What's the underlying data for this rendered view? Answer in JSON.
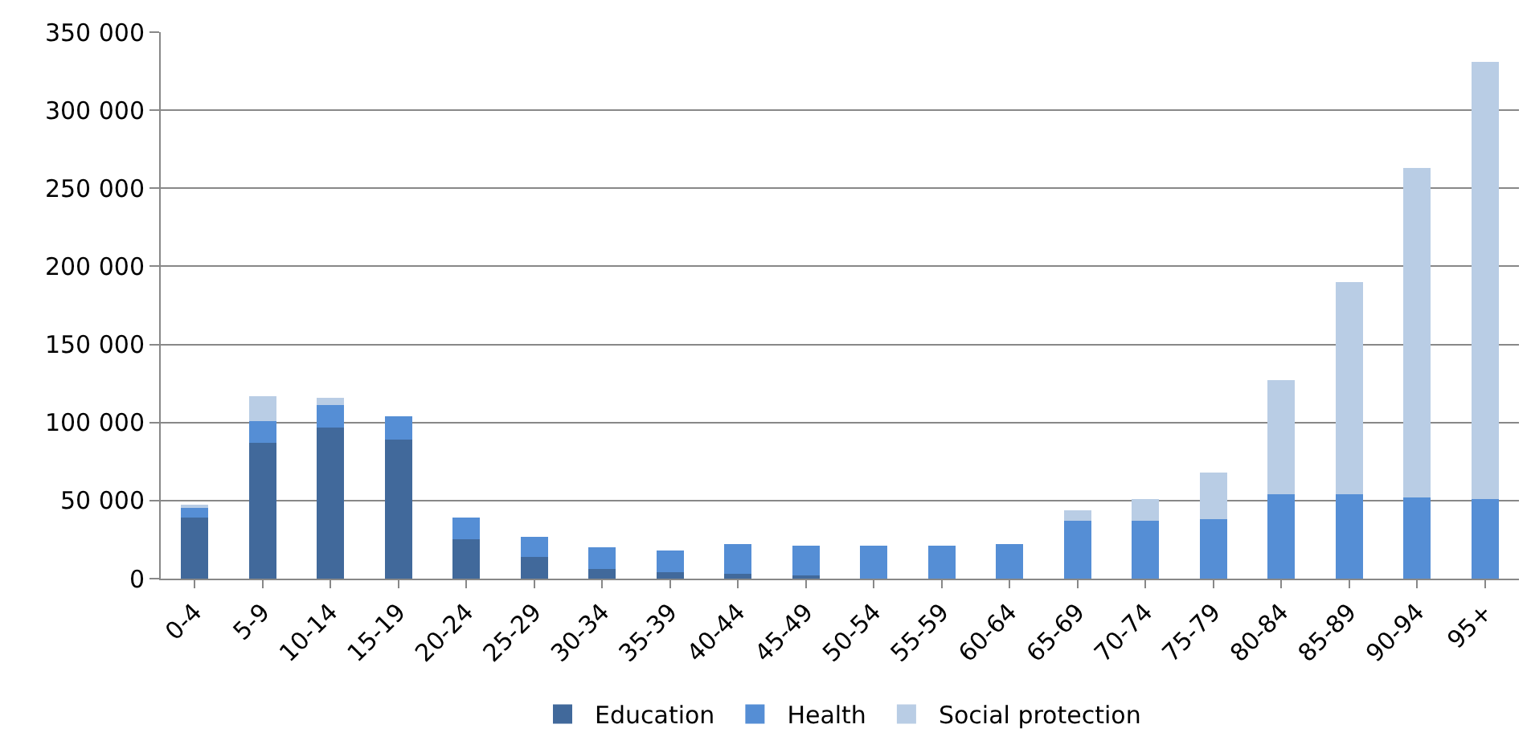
{
  "chart_data": {
    "type": "bar",
    "stacked": true,
    "categories": [
      "0-4",
      "5-9",
      "10-14",
      "15-19",
      "20-24",
      "25-29",
      "30-34",
      "35-39",
      "40-44",
      "45-49",
      "50-54",
      "55-59",
      "60-64",
      "65-69",
      "70-74",
      "75-79",
      "80-84",
      "85-89",
      "90-94",
      "95+"
    ],
    "series": [
      {
        "name": "Education",
        "color": "#41699b",
        "values": [
          39000,
          87000,
          97000,
          89000,
          25000,
          14000,
          6000,
          4000,
          3000,
          2000,
          0,
          0,
          0,
          0,
          0,
          0,
          0,
          0,
          0,
          0
        ]
      },
      {
        "name": "Health",
        "color": "#558ed5",
        "values": [
          7000,
          14000,
          14000,
          15000,
          14000,
          13000,
          14000,
          14000,
          19000,
          19000,
          21000,
          21000,
          22000,
          37000,
          37000,
          38000,
          54000,
          54000,
          52000,
          51000
        ]
      },
      {
        "name": "Social protection",
        "color": "#b9cde5",
        "values": [
          1000,
          16000,
          5000,
          0,
          0,
          0,
          0,
          0,
          0,
          0,
          0,
          0,
          0,
          7000,
          14000,
          30000,
          73000,
          136000,
          211000,
          280000
        ]
      }
    ],
    "ylim": [
      0,
      350000
    ],
    "yticks": [
      {
        "value": 0,
        "label": "0"
      },
      {
        "value": 50000,
        "label": "50 000"
      },
      {
        "value": 100000,
        "label": "100 000"
      },
      {
        "value": 150000,
        "label": "150 000"
      },
      {
        "value": 200000,
        "label": "200 000"
      },
      {
        "value": 250000,
        "label": "250 000"
      },
      {
        "value": 300000,
        "label": "300 000"
      },
      {
        "value": 350000,
        "label": "350 000"
      }
    ],
    "grid": "y",
    "legend": "bottom"
  }
}
